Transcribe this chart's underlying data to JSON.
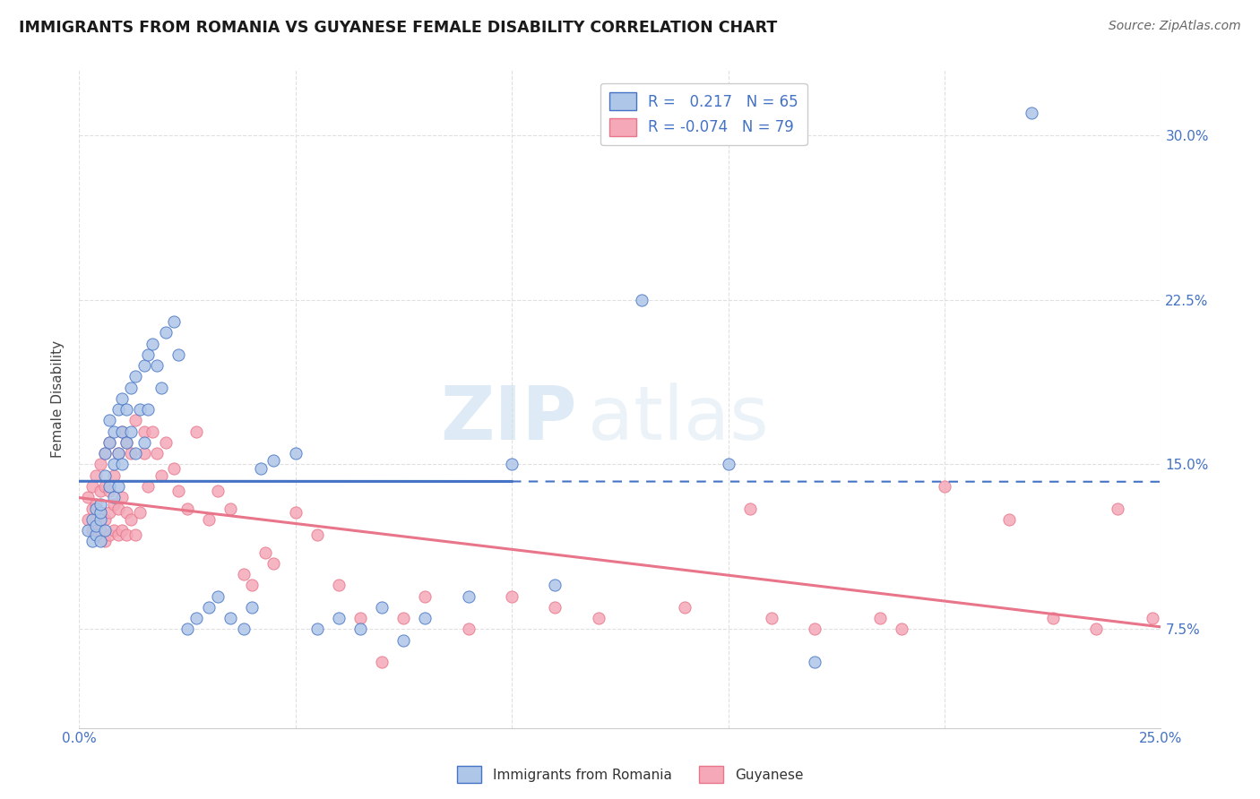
{
  "title": "IMMIGRANTS FROM ROMANIA VS GUYANESE FEMALE DISABILITY CORRELATION CHART",
  "source": "Source: ZipAtlas.com",
  "ylabel": "Female Disability",
  "ytick_labels": [
    "7.5%",
    "15.0%",
    "22.5%",
    "30.0%"
  ],
  "ytick_values": [
    0.075,
    0.15,
    0.225,
    0.3
  ],
  "xtick_values": [
    0.0,
    0.05,
    0.1,
    0.15,
    0.2,
    0.25
  ],
  "xmin": 0.0,
  "xmax": 0.25,
  "ymin": 0.03,
  "ymax": 0.33,
  "legend_romania": "Immigrants from Romania",
  "legend_guyanese": "Guyanese",
  "r_romania": "0.217",
  "n_romania": "65",
  "r_guyanese": "-0.074",
  "n_guyanese": "79",
  "color_romania": "#aec6e8",
  "color_guyanese": "#f4a8b8",
  "color_romania_line": "#4472c4",
  "color_guyanese_line": "#e8758a",
  "color_text_blue": "#4472c4",
  "romania_scatter_x": [
    0.002,
    0.003,
    0.003,
    0.004,
    0.004,
    0.004,
    0.005,
    0.005,
    0.005,
    0.005,
    0.006,
    0.006,
    0.006,
    0.007,
    0.007,
    0.007,
    0.008,
    0.008,
    0.008,
    0.009,
    0.009,
    0.009,
    0.01,
    0.01,
    0.01,
    0.011,
    0.011,
    0.012,
    0.012,
    0.013,
    0.013,
    0.014,
    0.015,
    0.015,
    0.016,
    0.016,
    0.017,
    0.018,
    0.019,
    0.02,
    0.022,
    0.023,
    0.025,
    0.027,
    0.03,
    0.032,
    0.035,
    0.038,
    0.04,
    0.042,
    0.045,
    0.05,
    0.055,
    0.06,
    0.065,
    0.07,
    0.075,
    0.08,
    0.09,
    0.1,
    0.11,
    0.13,
    0.15,
    0.17,
    0.22
  ],
  "romania_scatter_y": [
    0.12,
    0.115,
    0.125,
    0.118,
    0.122,
    0.13,
    0.115,
    0.125,
    0.128,
    0.132,
    0.12,
    0.145,
    0.155,
    0.14,
    0.16,
    0.17,
    0.135,
    0.15,
    0.165,
    0.14,
    0.155,
    0.175,
    0.15,
    0.165,
    0.18,
    0.16,
    0.175,
    0.165,
    0.185,
    0.155,
    0.19,
    0.175,
    0.16,
    0.195,
    0.175,
    0.2,
    0.205,
    0.195,
    0.185,
    0.21,
    0.215,
    0.2,
    0.075,
    0.08,
    0.085,
    0.09,
    0.08,
    0.075,
    0.085,
    0.148,
    0.152,
    0.155,
    0.075,
    0.08,
    0.075,
    0.085,
    0.07,
    0.08,
    0.09,
    0.15,
    0.095,
    0.225,
    0.15,
    0.06,
    0.31
  ],
  "guyanese_scatter_x": [
    0.002,
    0.002,
    0.003,
    0.003,
    0.003,
    0.004,
    0.004,
    0.004,
    0.004,
    0.005,
    0.005,
    0.005,
    0.005,
    0.006,
    0.006,
    0.006,
    0.006,
    0.007,
    0.007,
    0.007,
    0.007,
    0.008,
    0.008,
    0.008,
    0.009,
    0.009,
    0.009,
    0.01,
    0.01,
    0.01,
    0.011,
    0.011,
    0.011,
    0.012,
    0.012,
    0.013,
    0.013,
    0.014,
    0.015,
    0.015,
    0.016,
    0.017,
    0.018,
    0.019,
    0.02,
    0.022,
    0.023,
    0.025,
    0.027,
    0.03,
    0.032,
    0.035,
    0.038,
    0.04,
    0.043,
    0.045,
    0.05,
    0.055,
    0.06,
    0.065,
    0.07,
    0.075,
    0.08,
    0.09,
    0.1,
    0.11,
    0.12,
    0.14,
    0.155,
    0.16,
    0.17,
    0.185,
    0.19,
    0.2,
    0.215,
    0.225,
    0.235,
    0.24,
    0.248
  ],
  "guyanese_scatter_y": [
    0.125,
    0.135,
    0.12,
    0.13,
    0.14,
    0.118,
    0.125,
    0.132,
    0.145,
    0.12,
    0.128,
    0.138,
    0.15,
    0.115,
    0.125,
    0.14,
    0.155,
    0.118,
    0.128,
    0.138,
    0.16,
    0.12,
    0.132,
    0.145,
    0.118,
    0.13,
    0.155,
    0.12,
    0.135,
    0.165,
    0.118,
    0.128,
    0.16,
    0.125,
    0.155,
    0.118,
    0.17,
    0.128,
    0.165,
    0.155,
    0.14,
    0.165,
    0.155,
    0.145,
    0.16,
    0.148,
    0.138,
    0.13,
    0.165,
    0.125,
    0.138,
    0.13,
    0.1,
    0.095,
    0.11,
    0.105,
    0.128,
    0.118,
    0.095,
    0.08,
    0.06,
    0.08,
    0.09,
    0.075,
    0.09,
    0.085,
    0.08,
    0.085,
    0.13,
    0.08,
    0.075,
    0.08,
    0.075,
    0.14,
    0.125,
    0.08,
    0.075,
    0.13,
    0.08
  ],
  "watermark_zip": "ZIP",
  "watermark_atlas": "atlas",
  "background_color": "#ffffff",
  "grid_color": "#e0e0e0",
  "solid_line_xmax": 0.1,
  "dash_line_xstart": 0.1
}
